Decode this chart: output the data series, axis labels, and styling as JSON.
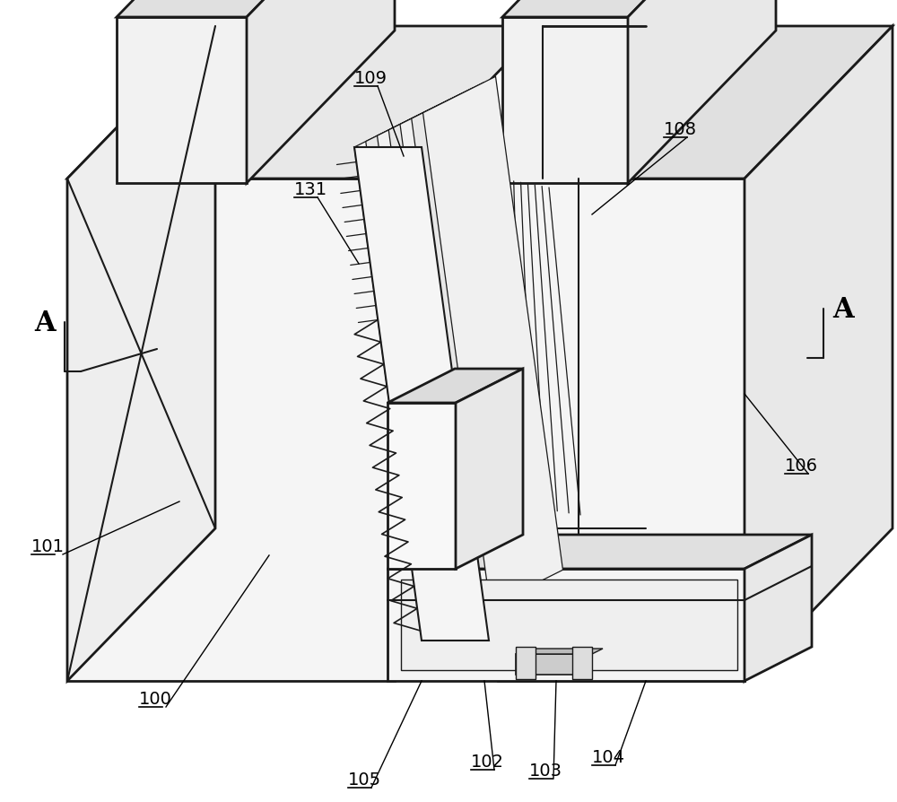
{
  "bg_color": "#ffffff",
  "lc": "#1a1a1a",
  "lw": 1.5,
  "tlw": 2.0,
  "figsize": [
    10.0,
    8.95
  ],
  "dpi": 100
}
